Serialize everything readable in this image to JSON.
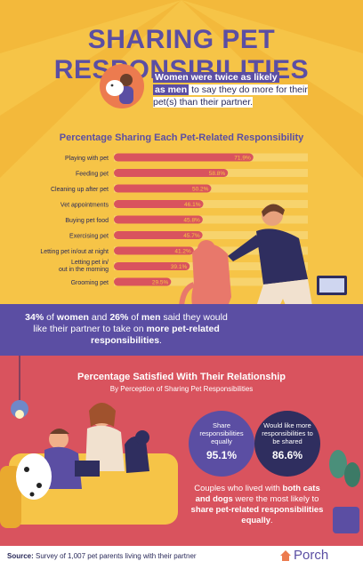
{
  "header": {
    "title": "SHARING PET RESPONSIBILITIES"
  },
  "intro": {
    "part1": "Women were twice as likely",
    "part2": "as men",
    "part3": " to say they do more for their pet(s) than their partner."
  },
  "chart_data": {
    "type": "bar",
    "orientation": "horizontal",
    "title": "Percentage Sharing Each Pet-Related Responsibility",
    "categories": [
      "Playing with pet",
      "Feeding pet",
      "Cleaning up after pet",
      "Vet appointments",
      "Buying pet food",
      "Exercising pet",
      "Letting pet in/out at night",
      "Letting pet in/ out in the morning",
      "Grooming pet"
    ],
    "values": [
      71.9,
      58.8,
      50.2,
      46.1,
      45.8,
      45.7,
      41.2,
      39.1,
      29.5
    ],
    "value_labels": [
      "71.9%",
      "58.8%",
      "50.2%",
      "46.1%",
      "45.8%",
      "45.7%",
      "41.2%",
      "39.1%",
      "29.5%"
    ],
    "xlim": [
      0,
      100
    ],
    "colors": {
      "bar": "#d9535e",
      "track": "#f7d36d",
      "label": "#f6c447"
    }
  },
  "band": {
    "p1": "34%",
    "p2": " of ",
    "p3": "women",
    "p4": " and ",
    "p5": "26%",
    "p6": " of ",
    "p7": "men",
    "p8": " said they would like their partner to take on ",
    "p9": "more pet-related responsibilities",
    "p10": "."
  },
  "satisfaction": {
    "title": "Percentage Satisfied With Their Relationship",
    "subtitle": "By Perception of Sharing Pet Responsibilities",
    "items": [
      {
        "label": "Share responsibilities equally",
        "value": "95.1%"
      },
      {
        "label": "Would like more responsibilities to be shared",
        "value": "86.6%"
      }
    ]
  },
  "couples": {
    "p1": "Couples who lived with ",
    "p2": "both cats and dogs",
    "p3": " were the most likely to ",
    "p4": "share pet-related responsibilities equally",
    "p5": "."
  },
  "footer": {
    "source_label": "Source:",
    "source_text": " Survey of 1,007 pet parents living with their partner",
    "brand": "Porch"
  },
  "colors": {
    "purple": "#5b4ea3",
    "navy": "#2f2e5f",
    "red": "#d9535e",
    "yellow": "#f6c447"
  }
}
